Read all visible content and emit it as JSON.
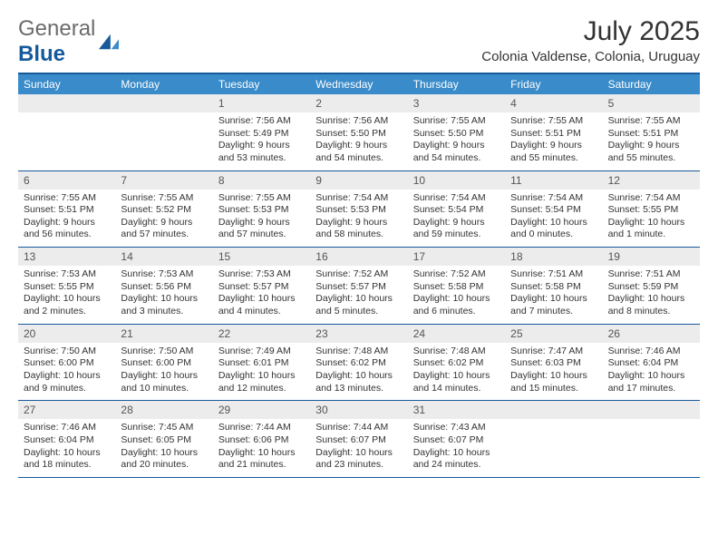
{
  "logo": {
    "word1": "General",
    "word2": "Blue"
  },
  "header": {
    "month_title": "July 2025",
    "location": "Colonia Valdense, Colonia, Uruguay"
  },
  "colors": {
    "header_bar": "#3a8bc9",
    "border": "#165a9c",
    "daynum_bg": "#ececec",
    "text": "#333333"
  },
  "weekdays": [
    "Sunday",
    "Monday",
    "Tuesday",
    "Wednesday",
    "Thursday",
    "Friday",
    "Saturday"
  ],
  "weeks": [
    [
      {
        "day": "",
        "sunrise": "",
        "sunset": "",
        "daylight": ""
      },
      {
        "day": "",
        "sunrise": "",
        "sunset": "",
        "daylight": ""
      },
      {
        "day": "1",
        "sunrise": "Sunrise: 7:56 AM",
        "sunset": "Sunset: 5:49 PM",
        "daylight": "Daylight: 9 hours and 53 minutes."
      },
      {
        "day": "2",
        "sunrise": "Sunrise: 7:56 AM",
        "sunset": "Sunset: 5:50 PM",
        "daylight": "Daylight: 9 hours and 54 minutes."
      },
      {
        "day": "3",
        "sunrise": "Sunrise: 7:55 AM",
        "sunset": "Sunset: 5:50 PM",
        "daylight": "Daylight: 9 hours and 54 minutes."
      },
      {
        "day": "4",
        "sunrise": "Sunrise: 7:55 AM",
        "sunset": "Sunset: 5:51 PM",
        "daylight": "Daylight: 9 hours and 55 minutes."
      },
      {
        "day": "5",
        "sunrise": "Sunrise: 7:55 AM",
        "sunset": "Sunset: 5:51 PM",
        "daylight": "Daylight: 9 hours and 55 minutes."
      }
    ],
    [
      {
        "day": "6",
        "sunrise": "Sunrise: 7:55 AM",
        "sunset": "Sunset: 5:51 PM",
        "daylight": "Daylight: 9 hours and 56 minutes."
      },
      {
        "day": "7",
        "sunrise": "Sunrise: 7:55 AM",
        "sunset": "Sunset: 5:52 PM",
        "daylight": "Daylight: 9 hours and 57 minutes."
      },
      {
        "day": "8",
        "sunrise": "Sunrise: 7:55 AM",
        "sunset": "Sunset: 5:53 PM",
        "daylight": "Daylight: 9 hours and 57 minutes."
      },
      {
        "day": "9",
        "sunrise": "Sunrise: 7:54 AM",
        "sunset": "Sunset: 5:53 PM",
        "daylight": "Daylight: 9 hours and 58 minutes."
      },
      {
        "day": "10",
        "sunrise": "Sunrise: 7:54 AM",
        "sunset": "Sunset: 5:54 PM",
        "daylight": "Daylight: 9 hours and 59 minutes."
      },
      {
        "day": "11",
        "sunrise": "Sunrise: 7:54 AM",
        "sunset": "Sunset: 5:54 PM",
        "daylight": "Daylight: 10 hours and 0 minutes."
      },
      {
        "day": "12",
        "sunrise": "Sunrise: 7:54 AM",
        "sunset": "Sunset: 5:55 PM",
        "daylight": "Daylight: 10 hours and 1 minute."
      }
    ],
    [
      {
        "day": "13",
        "sunrise": "Sunrise: 7:53 AM",
        "sunset": "Sunset: 5:55 PM",
        "daylight": "Daylight: 10 hours and 2 minutes."
      },
      {
        "day": "14",
        "sunrise": "Sunrise: 7:53 AM",
        "sunset": "Sunset: 5:56 PM",
        "daylight": "Daylight: 10 hours and 3 minutes."
      },
      {
        "day": "15",
        "sunrise": "Sunrise: 7:53 AM",
        "sunset": "Sunset: 5:57 PM",
        "daylight": "Daylight: 10 hours and 4 minutes."
      },
      {
        "day": "16",
        "sunrise": "Sunrise: 7:52 AM",
        "sunset": "Sunset: 5:57 PM",
        "daylight": "Daylight: 10 hours and 5 minutes."
      },
      {
        "day": "17",
        "sunrise": "Sunrise: 7:52 AM",
        "sunset": "Sunset: 5:58 PM",
        "daylight": "Daylight: 10 hours and 6 minutes."
      },
      {
        "day": "18",
        "sunrise": "Sunrise: 7:51 AM",
        "sunset": "Sunset: 5:58 PM",
        "daylight": "Daylight: 10 hours and 7 minutes."
      },
      {
        "day": "19",
        "sunrise": "Sunrise: 7:51 AM",
        "sunset": "Sunset: 5:59 PM",
        "daylight": "Daylight: 10 hours and 8 minutes."
      }
    ],
    [
      {
        "day": "20",
        "sunrise": "Sunrise: 7:50 AM",
        "sunset": "Sunset: 6:00 PM",
        "daylight": "Daylight: 10 hours and 9 minutes."
      },
      {
        "day": "21",
        "sunrise": "Sunrise: 7:50 AM",
        "sunset": "Sunset: 6:00 PM",
        "daylight": "Daylight: 10 hours and 10 minutes."
      },
      {
        "day": "22",
        "sunrise": "Sunrise: 7:49 AM",
        "sunset": "Sunset: 6:01 PM",
        "daylight": "Daylight: 10 hours and 12 minutes."
      },
      {
        "day": "23",
        "sunrise": "Sunrise: 7:48 AM",
        "sunset": "Sunset: 6:02 PM",
        "daylight": "Daylight: 10 hours and 13 minutes."
      },
      {
        "day": "24",
        "sunrise": "Sunrise: 7:48 AM",
        "sunset": "Sunset: 6:02 PM",
        "daylight": "Daylight: 10 hours and 14 minutes."
      },
      {
        "day": "25",
        "sunrise": "Sunrise: 7:47 AM",
        "sunset": "Sunset: 6:03 PM",
        "daylight": "Daylight: 10 hours and 15 minutes."
      },
      {
        "day": "26",
        "sunrise": "Sunrise: 7:46 AM",
        "sunset": "Sunset: 6:04 PM",
        "daylight": "Daylight: 10 hours and 17 minutes."
      }
    ],
    [
      {
        "day": "27",
        "sunrise": "Sunrise: 7:46 AM",
        "sunset": "Sunset: 6:04 PM",
        "daylight": "Daylight: 10 hours and 18 minutes."
      },
      {
        "day": "28",
        "sunrise": "Sunrise: 7:45 AM",
        "sunset": "Sunset: 6:05 PM",
        "daylight": "Daylight: 10 hours and 20 minutes."
      },
      {
        "day": "29",
        "sunrise": "Sunrise: 7:44 AM",
        "sunset": "Sunset: 6:06 PM",
        "daylight": "Daylight: 10 hours and 21 minutes."
      },
      {
        "day": "30",
        "sunrise": "Sunrise: 7:44 AM",
        "sunset": "Sunset: 6:07 PM",
        "daylight": "Daylight: 10 hours and 23 minutes."
      },
      {
        "day": "31",
        "sunrise": "Sunrise: 7:43 AM",
        "sunset": "Sunset: 6:07 PM",
        "daylight": "Daylight: 10 hours and 24 minutes."
      },
      {
        "day": "",
        "sunrise": "",
        "sunset": "",
        "daylight": ""
      },
      {
        "day": "",
        "sunrise": "",
        "sunset": "",
        "daylight": ""
      }
    ]
  ]
}
